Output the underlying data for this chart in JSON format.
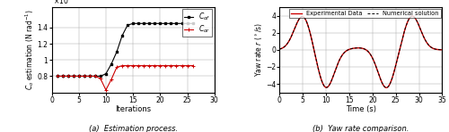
{
  "left_plot": {
    "title": "(a)  Estimation process.",
    "xlabel": "Iterations",
    "xlim": [
      0,
      30
    ],
    "ylim": [
      60000.0,
      165000.0
    ],
    "yticks": [
      80000.0,
      100000.0,
      120000.0,
      140000.0
    ],
    "ytick_labels": [
      "0.8",
      "1",
      "1.2",
      "1.4"
    ],
    "xticks": [
      0,
      5,
      10,
      15,
      20,
      25,
      30
    ],
    "black_line": {
      "x": [
        1,
        2,
        3,
        4,
        5,
        6,
        7,
        8,
        9,
        10,
        11,
        12,
        13,
        14,
        15,
        16,
        17,
        18,
        19,
        20,
        21,
        22,
        23,
        24,
        25,
        26
      ],
      "y": [
        80000.0,
        80000.0,
        80000.0,
        80000.0,
        80000.0,
        80000.0,
        80000.0,
        80000.0,
        80000.0,
        83000.0,
        95000.0,
        110000.0,
        130000.0,
        143000.0,
        145000.0,
        145000.0,
        145000.0,
        145000.0,
        145000.0,
        145000.0,
        145000.0,
        145000.0,
        145000.0,
        145000.0,
        145000.0,
        145000.0
      ]
    },
    "red_line": {
      "x": [
        1,
        2,
        3,
        4,
        5,
        6,
        7,
        8,
        9,
        10,
        11,
        12,
        13,
        14,
        15,
        16,
        17,
        18,
        19,
        20,
        21,
        22,
        23,
        24,
        25,
        26
      ],
      "y": [
        80000.0,
        80000.0,
        80000.0,
        80000.0,
        80000.0,
        80000.0,
        80000.0,
        80000.0,
        77000.0,
        63000.0,
        76000.0,
        91000.0,
        93000.0,
        93000.0,
        93000.0,
        93000.0,
        93000.0,
        93000.0,
        93000.0,
        93000.0,
        93000.0,
        93000.0,
        93000.0,
        93000.0,
        93000.0,
        93000.0
      ]
    }
  },
  "right_plot": {
    "title": "(b)  Yaw rate comparison.",
    "xlabel": "Time (s)",
    "xlim": [
      0,
      35
    ],
    "ylim": [
      -5,
      5
    ],
    "yticks": [
      -4,
      -2,
      0,
      2,
      4
    ],
    "xticks": [
      0,
      5,
      10,
      15,
      20,
      25,
      30,
      35
    ],
    "legend_exp": "Experimental Data",
    "legend_num": "Numerical solution"
  },
  "colors": {
    "black": "#000000",
    "red": "#cc0000",
    "grid": "#aaaaaa"
  }
}
